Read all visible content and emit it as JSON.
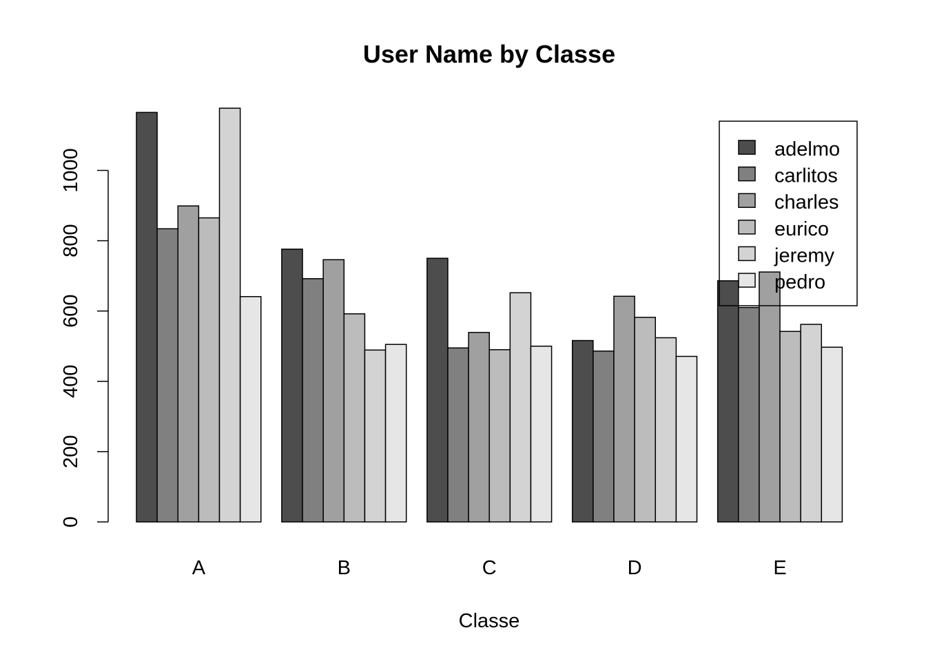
{
  "chart_data": {
    "type": "bar",
    "title": "User Name by Classe",
    "xlabel": "Classe",
    "ylabel": "",
    "categories": [
      "A",
      "B",
      "C",
      "D",
      "E"
    ],
    "ylim": [
      0,
      1170
    ],
    "yticks": [
      0,
      200,
      400,
      600,
      800,
      1000
    ],
    "grid": false,
    "legend_position": "top-right",
    "series": [
      {
        "name": "adelmo",
        "color": "#4d4d4d",
        "values": [
          1165,
          776,
          750,
          516,
          686
        ]
      },
      {
        "name": "carlitos",
        "color": "#808080",
        "values": [
          834,
          692,
          495,
          486,
          610
        ]
      },
      {
        "name": "charles",
        "color": "#a0a0a0",
        "values": [
          899,
          746,
          539,
          642,
          711
        ]
      },
      {
        "name": "eurico",
        "color": "#bcbcbc",
        "values": [
          865,
          592,
          490,
          582,
          542
        ]
      },
      {
        "name": "jeremy",
        "color": "#d3d3d3",
        "values": [
          1177,
          489,
          652,
          524,
          562
        ]
      },
      {
        "name": "pedro",
        "color": "#e6e6e6",
        "values": [
          641,
          505,
          500,
          471,
          497
        ]
      }
    ]
  }
}
